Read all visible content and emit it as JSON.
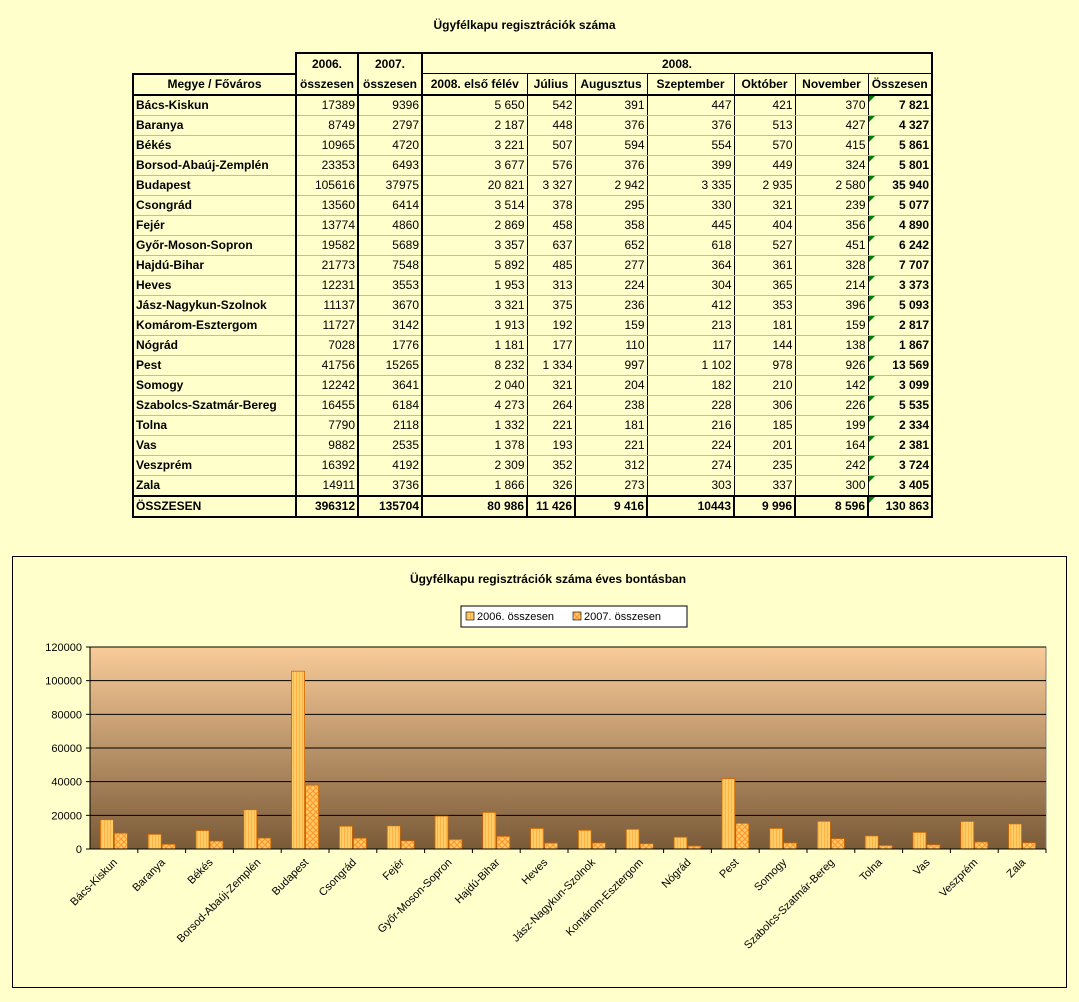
{
  "table": {
    "title": "Ügyfélkapu regisztrációk száma",
    "header": {
      "region_label": "Megye / Főváros",
      "col_2006": [
        "2006.",
        "összesen"
      ],
      "col_2007": [
        "2007.",
        "összesen"
      ],
      "group_2008": "2008.",
      "sub_2008": [
        "2008. első félév",
        "Július",
        "Augusztus",
        "Szeptember",
        "Október",
        "November",
        "Összesen"
      ]
    },
    "rows": [
      {
        "name": "Bács-Kiskun",
        "y2006": "17389",
        "y2007": "9396",
        "h1": "5 650",
        "jul": "542",
        "aug": "391",
        "sep": "447",
        "oct": "421",
        "nov": "370",
        "total": "7 821"
      },
      {
        "name": "Baranya",
        "y2006": "8749",
        "y2007": "2797",
        "h1": "2 187",
        "jul": "448",
        "aug": "376",
        "sep": "376",
        "oct": "513",
        "nov": "427",
        "total": "4 327"
      },
      {
        "name": "Békés",
        "y2006": "10965",
        "y2007": "4720",
        "h1": "3 221",
        "jul": "507",
        "aug": "594",
        "sep": "554",
        "oct": "570",
        "nov": "415",
        "total": "5 861"
      },
      {
        "name": "Borsod-Abaúj-Zemplén",
        "y2006": "23353",
        "y2007": "6493",
        "h1": "3 677",
        "jul": "576",
        "aug": "376",
        "sep": "399",
        "oct": "449",
        "nov": "324",
        "total": "5 801"
      },
      {
        "name": "Budapest",
        "y2006": "105616",
        "y2007": "37975",
        "h1": "20 821",
        "jul": "3 327",
        "aug": "2 942",
        "sep": "3 335",
        "oct": "2 935",
        "nov": "2 580",
        "total": "35 940"
      },
      {
        "name": "Csongrád",
        "y2006": "13560",
        "y2007": "6414",
        "h1": "3 514",
        "jul": "378",
        "aug": "295",
        "sep": "330",
        "oct": "321",
        "nov": "239",
        "total": "5 077"
      },
      {
        "name": "Fejér",
        "y2006": "13774",
        "y2007": "4860",
        "h1": "2 869",
        "jul": "458",
        "aug": "358",
        "sep": "445",
        "oct": "404",
        "nov": "356",
        "total": "4 890"
      },
      {
        "name": "Győr-Moson-Sopron",
        "y2006": "19582",
        "y2007": "5689",
        "h1": "3 357",
        "jul": "637",
        "aug": "652",
        "sep": "618",
        "oct": "527",
        "nov": "451",
        "total": "6 242"
      },
      {
        "name": "Hajdú-Bihar",
        "y2006": "21773",
        "y2007": "7548",
        "h1": "5 892",
        "jul": "485",
        "aug": "277",
        "sep": "364",
        "oct": "361",
        "nov": "328",
        "total": "7 707"
      },
      {
        "name": "Heves",
        "y2006": "12231",
        "y2007": "3553",
        "h1": "1 953",
        "jul": "313",
        "aug": "224",
        "sep": "304",
        "oct": "365",
        "nov": "214",
        "total": "3 373"
      },
      {
        "name": "Jász-Nagykun-Szolnok",
        "y2006": "11137",
        "y2007": "3670",
        "h1": "3 321",
        "jul": "375",
        "aug": "236",
        "sep": "412",
        "oct": "353",
        "nov": "396",
        "total": "5 093"
      },
      {
        "name": "Komárom-Esztergom",
        "y2006": "11727",
        "y2007": "3142",
        "h1": "1 913",
        "jul": "192",
        "aug": "159",
        "sep": "213",
        "oct": "181",
        "nov": "159",
        "total": "2 817"
      },
      {
        "name": "Nógrád",
        "y2006": "7028",
        "y2007": "1776",
        "h1": "1 181",
        "jul": "177",
        "aug": "110",
        "sep": "117",
        "oct": "144",
        "nov": "138",
        "total": "1 867"
      },
      {
        "name": "Pest",
        "y2006": "41756",
        "y2007": "15265",
        "h1": "8 232",
        "jul": "1 334",
        "aug": "997",
        "sep": "1 102",
        "oct": "978",
        "nov": "926",
        "total": "13 569"
      },
      {
        "name": "Somogy",
        "y2006": "12242",
        "y2007": "3641",
        "h1": "2 040",
        "jul": "321",
        "aug": "204",
        "sep": "182",
        "oct": "210",
        "nov": "142",
        "total": "3 099"
      },
      {
        "name": "Szabolcs-Szatmár-Bereg",
        "y2006": "16455",
        "y2007": "6184",
        "h1": "4 273",
        "jul": "264",
        "aug": "238",
        "sep": "228",
        "oct": "306",
        "nov": "226",
        "total": "5 535"
      },
      {
        "name": "Tolna",
        "y2006": "7790",
        "y2007": "2118",
        "h1": "1 332",
        "jul": "221",
        "aug": "181",
        "sep": "216",
        "oct": "185",
        "nov": "199",
        "total": "2 334"
      },
      {
        "name": "Vas",
        "y2006": "9882",
        "y2007": "2535",
        "h1": "1 378",
        "jul": "193",
        "aug": "221",
        "sep": "224",
        "oct": "201",
        "nov": "164",
        "total": "2 381"
      },
      {
        "name": "Veszprém",
        "y2006": "16392",
        "y2007": "4192",
        "h1": "2 309",
        "jul": "352",
        "aug": "312",
        "sep": "274",
        "oct": "235",
        "nov": "242",
        "total": "3 724"
      },
      {
        "name": "Zala",
        "y2006": "14911",
        "y2007": "3736",
        "h1": "1 866",
        "jul": "326",
        "aug": "273",
        "sep": "303",
        "oct": "337",
        "nov": "300",
        "total": "3 405"
      }
    ],
    "total_row": {
      "name": "ÖSSZESEN",
      "y2006": "396312",
      "y2007": "135704",
      "h1": "80 986",
      "jul": "11 426",
      "aug": "9 416",
      "sep": "10443",
      "oct": "9 996",
      "nov": "8 596",
      "total": "130 863"
    }
  },
  "chart_data": {
    "type": "bar",
    "title": "Ügyfélkapu regisztrációk száma éves bontásban",
    "categories": [
      "Bács-Kiskun",
      "Baranya",
      "Békés",
      "Borsod-Abaúj-Zemplén",
      "Budapest",
      "Csongrád",
      "Fejér",
      "Győr-Moson-Sopron",
      "Hajdú-Bihar",
      "Heves",
      "Jász-Nagykun-Szolnok",
      "Komárom-Esztergom",
      "Nógrád",
      "Pest",
      "Somogy",
      "Szabolcs-Szatmár-Bereg",
      "Tolna",
      "Vas",
      "Veszprém",
      "Zala"
    ],
    "series": [
      {
        "name": "2006. összesen",
        "values": [
          17389,
          8749,
          10965,
          23353,
          105616,
          13560,
          13774,
          19582,
          21773,
          12231,
          11137,
          11727,
          7028,
          41756,
          12242,
          16455,
          7790,
          9882,
          16392,
          14911
        ]
      },
      {
        "name": "2007. összesen",
        "values": [
          9396,
          2797,
          4720,
          6493,
          37975,
          6414,
          4860,
          5689,
          7548,
          3553,
          3670,
          3142,
          1776,
          15265,
          3641,
          6184,
          2118,
          2535,
          4192,
          3736
        ]
      }
    ],
    "ylim": [
      0,
      120000
    ],
    "yticks": [
      0,
      20000,
      40000,
      60000,
      80000,
      100000,
      120000
    ],
    "grid": true,
    "legend_position": "top-center",
    "colors": {
      "bar_fill": "#FFCC66",
      "bar_hatch": "#FF9933",
      "bar_stroke": "#CC6600",
      "plot_top": "#F9CC99",
      "plot_bottom": "#7A5A38"
    }
  }
}
